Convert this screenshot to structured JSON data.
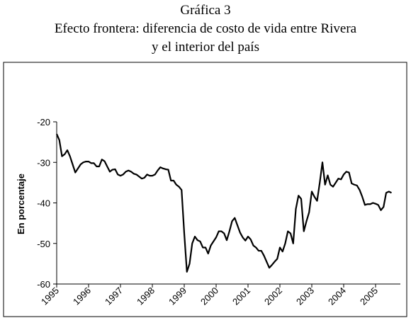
{
  "chart_data": {
    "type": "line",
    "title": "Gráfica 3",
    "subtitle": [
      "Efecto frontera: diferencia de costo de vida entre Rivera",
      "y el interior del país"
    ],
    "y_label": "En porcentaje",
    "categories": [
      "1995",
      null,
      null,
      null,
      null,
      null,
      null,
      null,
      null,
      null,
      null,
      null,
      "1996",
      null,
      null,
      null,
      null,
      null,
      null,
      null,
      null,
      null,
      null,
      null,
      "1997",
      null,
      null,
      null,
      null,
      null,
      null,
      null,
      null,
      null,
      null,
      null,
      "1998",
      null,
      null,
      null,
      null,
      null,
      null,
      null,
      null,
      null,
      null,
      null,
      "1999",
      null,
      null,
      null,
      null,
      null,
      null,
      null,
      null,
      null,
      null,
      null,
      "2000",
      null,
      null,
      null,
      null,
      null,
      null,
      null,
      null,
      null,
      null,
      null,
      "2001",
      null,
      null,
      null,
      null,
      null,
      null,
      null,
      null,
      null,
      null,
      null,
      "2002",
      null,
      null,
      null,
      null,
      null,
      null,
      null,
      null,
      null,
      null,
      null,
      "2003",
      null,
      null,
      null,
      null,
      null,
      null,
      null,
      null,
      null,
      null,
      null,
      "2004",
      null,
      null,
      null,
      null,
      null,
      null,
      null,
      null,
      null,
      null,
      null,
      "2005",
      null,
      null,
      null,
      null,
      null,
      null
    ],
    "series": [
      {
        "color": "#000000",
        "values": [
          -23,
          -24.5,
          -28.5,
          -28,
          -27,
          -28.5,
          -30.5,
          -32.5,
          -31.5,
          -30.5,
          -30,
          -29.8,
          -29.8,
          -30.2,
          -30.2,
          -31,
          -31,
          -29.3,
          -29.7,
          -31,
          -32.3,
          -31.8,
          -31.7,
          -33,
          -33.3,
          -33,
          -32.3,
          -32,
          -32.3,
          -32.8,
          -33,
          -33.5,
          -34,
          -33.8,
          -33,
          -33.3,
          -33.3,
          -33,
          -32,
          -31.2,
          -31.5,
          -31.7,
          -31.8,
          -34.5,
          -34.5,
          -35.5,
          -36,
          -36.8,
          -47.5,
          -57,
          -55,
          -50,
          -48.3,
          -49.2,
          -49.5,
          -51,
          -51,
          -52.5,
          -50.5,
          -49.5,
          -48.5,
          -47,
          -47,
          -47.5,
          -49.2,
          -47,
          -44.5,
          -43.7,
          -45.5,
          -47.3,
          -48.5,
          -49.3,
          -48.3,
          -49,
          -50.5,
          -51,
          -51.8,
          -51.8,
          -53,
          -54.5,
          -56,
          -55.3,
          -54.5,
          -53.8,
          -51,
          -52,
          -50,
          -47,
          -47.5,
          -50,
          -41.5,
          -38.2,
          -39,
          -47,
          -44.5,
          -42.3,
          -37.2,
          -38.5,
          -39.5,
          -35,
          -30,
          -35.5,
          -33.2,
          -35.5,
          -36,
          -35,
          -34,
          -34.2,
          -33,
          -32.3,
          -32.5,
          -35.2,
          -35.5,
          -35.7,
          -36.8,
          -38.5,
          -40.5,
          -40.3,
          -40.3,
          -40,
          -40.2,
          -40.5,
          -41.8,
          -41,
          -37.5,
          -37.2,
          -37.5
        ]
      }
    ],
    "ylim": [
      -60,
      -20
    ],
    "yticks": [
      -60,
      -50,
      -40,
      -30,
      -20
    ],
    "grid": false
  }
}
